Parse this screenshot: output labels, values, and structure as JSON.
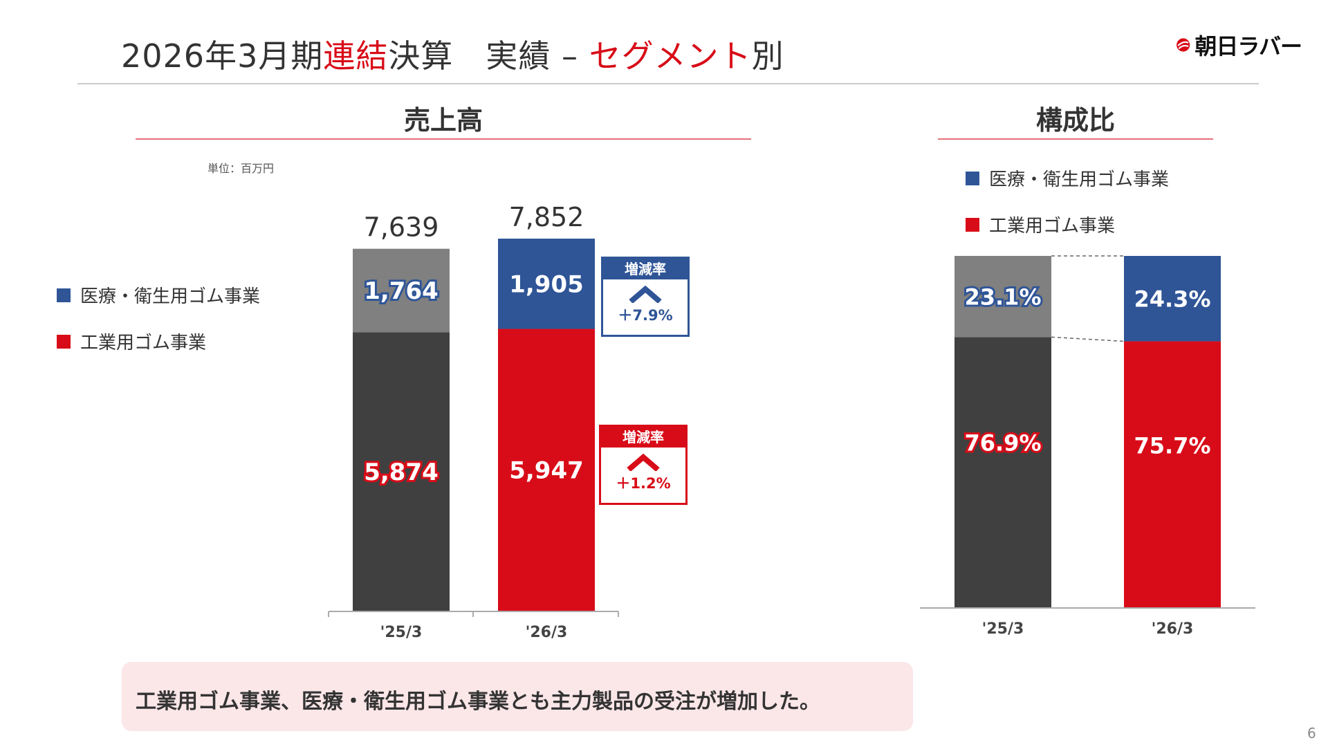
{
  "header": {
    "title_part1": "2026年3月期",
    "title_part2": "連結",
    "title_part3": "決算　実績 – ",
    "title_part4": "セグメント",
    "title_part5": "別",
    "logo_text": "朝日ラバー"
  },
  "sales": {
    "title": "売上高",
    "unit": "単位：百万円",
    "legend": {
      "medical": "医療・衛生用ゴム事業",
      "industrial": "工業用ゴム事業"
    }
  },
  "composition": {
    "title": "構成比",
    "legend": {
      "medical": "医療・衛生用ゴム事業",
      "industrial": "工業用ゴム事業"
    }
  },
  "change_boxes": [
    {
      "label": "増減率",
      "value": "＋7.9%"
    },
    {
      "label": "増減率",
      "value": "＋1.2%"
    }
  ],
  "note": "工業用ゴム事業、医療・衛生用ゴム事業とも主力製品の受注が増加した。",
  "page_number": "6",
  "colors": {
    "accent_red": "#d80c18",
    "medical_blue": "#2f5597",
    "dark_gray": "#404040",
    "mid_gray": "#808080",
    "note_bg": "#fbe6e8"
  },
  "chart_data": [
    {
      "type": "bar",
      "stacked": true,
      "title": "売上高",
      "categories": [
        "'25/3",
        "'26/3"
      ],
      "series": [
        {
          "name": "工業用ゴム事業",
          "values": [
            5874,
            5947
          ],
          "labels": [
            "5,874",
            "5,947"
          ]
        },
        {
          "name": "医療・衛生用ゴム事業",
          "values": [
            1764,
            1905
          ],
          "labels": [
            "1,764",
            "1,905"
          ]
        }
      ],
      "totals": [
        7639,
        7852
      ],
      "total_labels": [
        "7,639",
        "7,852"
      ],
      "ylim": [
        0,
        7852
      ]
    },
    {
      "type": "bar",
      "stacked": true,
      "title": "構成比",
      "categories": [
        "'25/3",
        "'26/3"
      ],
      "series": [
        {
          "name": "工業用ゴム事業",
          "values": [
            76.9,
            75.7
          ],
          "labels": [
            "76.9%",
            "75.7%"
          ]
        },
        {
          "name": "医療・衛生用ゴム事業",
          "values": [
            23.1,
            24.3
          ],
          "labels": [
            "23.1%",
            "24.3%"
          ]
        }
      ],
      "ylim": [
        0,
        100
      ]
    }
  ]
}
